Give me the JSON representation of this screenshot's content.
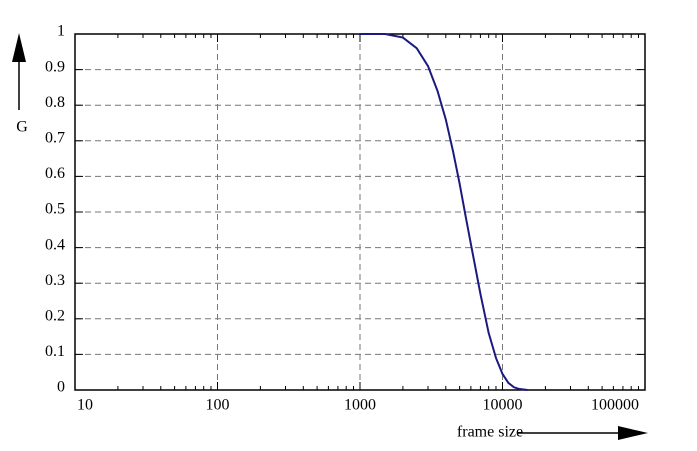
{
  "chart_data": {
    "type": "line",
    "xlabel": "frame size",
    "ylabel": "G",
    "x": [
      1000,
      1500,
      2000,
      2500,
      3000,
      3500,
      4000,
      4500,
      5000,
      5500,
      6000,
      7000,
      8000,
      9000,
      10000,
      11000,
      12000,
      13000,
      15000
    ],
    "values": [
      1,
      1,
      0.99,
      0.96,
      0.91,
      0.84,
      0.76,
      0.67,
      0.58,
      0.49,
      0.41,
      0.27,
      0.16,
      0.09,
      0.045,
      0.02,
      0.008,
      0.003,
      0
    ],
    "color": "#1a1a80",
    "xscale": "log",
    "xlim": [
      10,
      100000
    ],
    "xticks": [
      10,
      100,
      1000,
      10000,
      100000
    ],
    "ylim": [
      0,
      1
    ],
    "yticks": [
      0,
      0.1,
      0.2,
      0.3,
      0.4,
      0.5,
      0.6,
      0.7,
      0.8,
      0.9,
      1
    ],
    "grid": true
  }
}
